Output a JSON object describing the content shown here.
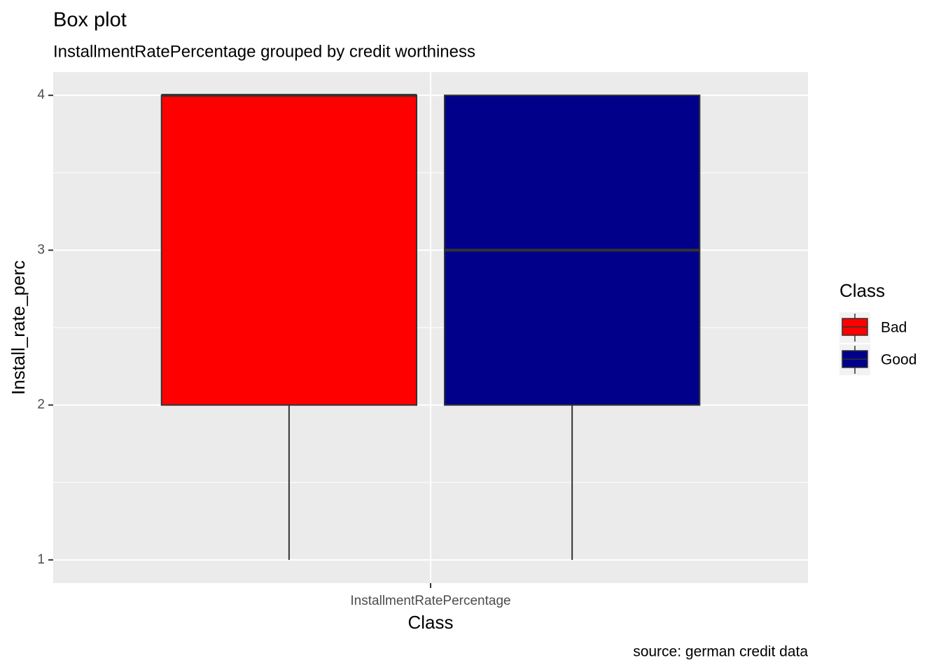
{
  "chart_data": {
    "type": "box",
    "title": "Box plot",
    "subtitle": "InstallmentRatePercentage grouped by credit worthiness",
    "x_label": "Class",
    "y_label": "Install_rate_perc",
    "caption": "source: german credit data",
    "legend_title": "Class",
    "legend_position": "right",
    "categories": [
      "InstallmentRatePercentage"
    ],
    "series": [
      {
        "name": "Bad",
        "color": "#ff0000",
        "min": [
          1
        ],
        "q1": [
          2
        ],
        "median": [
          4
        ],
        "q3": [
          4
        ],
        "max": [
          4
        ]
      },
      {
        "name": "Good",
        "color": "#00008b",
        "min": [
          1
        ],
        "q1": [
          2
        ],
        "median": [
          3
        ],
        "q3": [
          4
        ],
        "max": [
          4
        ]
      }
    ],
    "ylim": [
      0.85,
      4.15
    ],
    "yticks": [
      1,
      2,
      3,
      4
    ],
    "grid": true
  }
}
